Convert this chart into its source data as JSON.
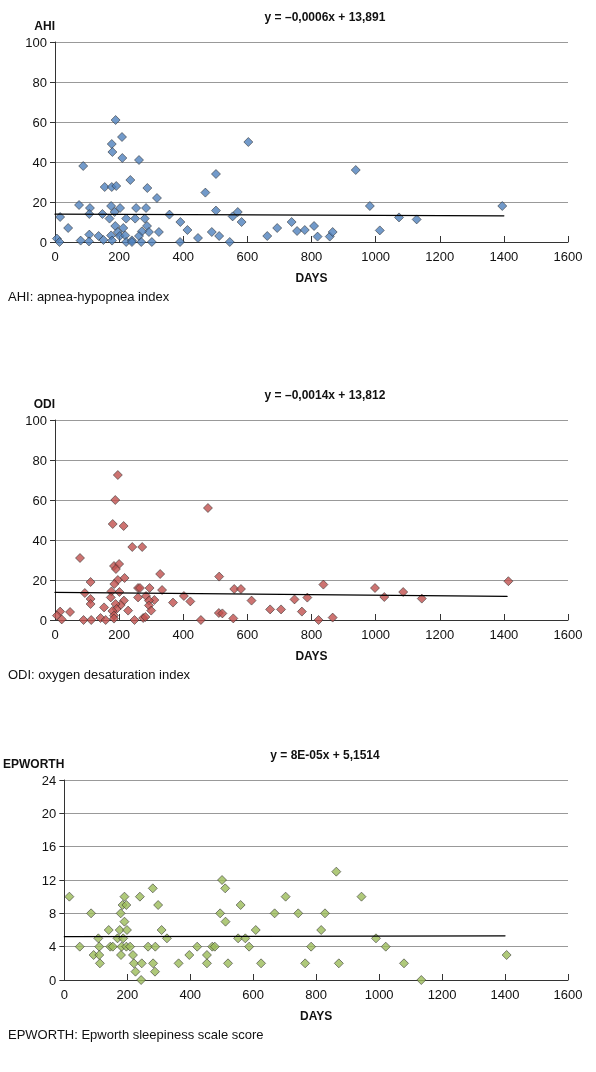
{
  "chart_data": [
    {
      "type": "scatter",
      "title": "y = –0,0006x + 13,891",
      "ylabel": "AHI",
      "xlabel": "DAYS",
      "annotations": [
        "AHI: apnea-hypopnea index"
      ],
      "xlim": [
        0,
        1600
      ],
      "xticks": [
        0,
        200,
        400,
        600,
        800,
        1000,
        1200,
        1400,
        1600
      ],
      "ylim": [
        0,
        100
      ],
      "yticks": [
        0,
        20,
        40,
        60,
        80,
        100
      ],
      "grid": "y",
      "marker": "diamond",
      "series": [
        {
          "color": "#4f81bd",
          "x": [
            189,
            209,
            177,
            179,
            210,
            262,
            88,
            603,
            502,
            235,
            155,
            177,
            191,
            288,
            318,
            469,
            75,
            109,
            107,
            148,
            175,
            186,
            203,
            170,
            222,
            253,
            250,
            284,
            280,
            357,
            16,
            41,
            188,
            196,
            213,
            287,
            293,
            271,
            262,
            324,
            391,
            413,
            446,
            489,
            512,
            502,
            554,
            570,
            582,
            545,
            662,
            693,
            738,
            755,
            779,
            808,
            819,
            6,
            14,
            80,
            107,
            106,
            136,
            151,
            175,
            178,
            202,
            219,
            222,
            240,
            240,
            269,
            302,
            390,
            938,
            982,
            1395,
            1073,
            1128,
            1013,
            857,
            866
          ],
          "values": [
            61,
            52.5,
            49,
            45,
            42,
            41,
            38,
            50,
            34,
            31,
            27.5,
            27.5,
            28,
            27,
            22,
            24.7,
            18.5,
            17,
            14,
            14,
            18,
            15,
            17,
            11.7,
            11.7,
            17,
            11.7,
            17,
            11.7,
            13.7,
            12.5,
            7,
            8,
            5,
            7,
            8,
            5,
            5.3,
            3,
            5,
            10,
            6,
            2,
            5,
            3,
            15.7,
            12.8,
            15,
            10,
            0,
            3,
            7,
            10,
            5.5,
            6,
            8,
            2.7,
            1.7,
            0,
            0.7,
            3.7,
            0.3,
            3,
            1,
            3.3,
            0.7,
            3,
            3.3,
            0,
            0.8,
            0,
            0,
            0,
            0,
            36,
            18,
            18,
            12.3,
            11.3,
            5.8,
            2.7,
            5
          ]
        },
        {
          "type": "line",
          "color": "#000000",
          "marker": "none",
          "x": [
            0,
            1400
          ],
          "values": [
            13.9,
            13.1
          ]
        }
      ]
    },
    {
      "type": "scatter",
      "title": "y = –0,0014x + 13,812",
      "ylabel": "ODI",
      "xlabel": "DAYS",
      "annotations": [
        "ODI: oxygen desaturation index"
      ],
      "xlim": [
        0,
        1600
      ],
      "xticks": [
        0,
        200,
        400,
        600,
        800,
        1000,
        1200,
        1400,
        1600
      ],
      "ylim": [
        0,
        100
      ],
      "yticks": [
        0,
        20,
        40,
        60,
        80,
        100
      ],
      "grid": "y",
      "marker": "diamond",
      "series": [
        {
          "color": "#c0504d",
          "x": [
            196,
            188,
            180,
            214,
            477,
            241,
            272,
            78,
            184,
            200,
            190,
            217,
            196,
            111,
            185,
            328,
            512,
            93,
            176,
            201,
            259,
            265,
            295,
            334,
            174,
            259,
            284,
            310,
            402,
            422,
            368,
            559,
            580,
            613,
            111,
            111,
            215,
            293,
            205,
            189,
            153,
            192,
            228,
            293,
            300,
            179,
            47,
            16,
            6,
            21,
            89,
            113,
            142,
            158,
            184,
            184,
            248,
            275,
            282,
            455,
            511,
            522,
            556,
            671,
            705,
            747,
            770,
            787,
            837,
            822,
            866,
            998,
            1027,
            1086,
            1144,
            1414
          ],
          "values": [
            72.5,
            60,
            48,
            47,
            56,
            36.5,
            36.5,
            31,
            27,
            28,
            25.5,
            21,
            20,
            19,
            18,
            23,
            21.7,
            13.5,
            14.3,
            14,
            16,
            16,
            16,
            15,
            11.3,
            11.3,
            12,
            10,
            12,
            9.3,
            8.7,
            15.5,
            15.5,
            9.7,
            10.5,
            8,
            9.7,
            9.7,
            7.5,
            8,
            6.3,
            5.5,
            4.7,
            7.3,
            4.7,
            4.5,
            4,
            4.2,
            2.2,
            0.3,
            0,
            0,
            1,
            0,
            2.2,
            0.7,
            0,
            1,
            1.5,
            0,
            3.5,
            3.3,
            0.8,
            5.3,
            5.3,
            10.3,
            4.2,
            11.2,
            17.7,
            0,
            1.2,
            16,
            11.5,
            14,
            10.7,
            19.4
          ]
        },
        {
          "type": "line",
          "color": "#000000",
          "marker": "none",
          "x": [
            0,
            1410
          ],
          "values": [
            13.8,
            11.8
          ]
        }
      ]
    },
    {
      "type": "scatter",
      "title": "y = 8E-05x + 5,1514",
      "ylabel": "EPWORTH",
      "xlabel": "DAYS",
      "annotations": [
        "EPWORTH: Epworth sleepiness scale score"
      ],
      "xlim": [
        0,
        1600
      ],
      "xticks": [
        0,
        200,
        400,
        600,
        800,
        1000,
        1200,
        1400,
        1600
      ],
      "ylim": [
        0,
        24
      ],
      "yticks": [
        0,
        4,
        8,
        12,
        16,
        20,
        24
      ],
      "grid": "y",
      "marker": "diamond",
      "series": [
        {
          "color": "#9bbb59",
          "x": [
            16,
            49,
            85,
            93,
            108,
            111,
            111,
            113,
            141,
            146,
            154,
            169,
            176,
            180,
            182,
            179,
            185,
            191,
            197,
            191,
            199,
            187,
            197,
            209,
            218,
            221,
            226,
            244,
            246,
            240,
            266,
            282,
            288,
            289,
            281,
            298,
            309,
            326,
            363,
            397,
            422,
            453,
            453,
            470,
            478,
            495,
            501,
            511,
            512,
            520,
            552,
            575,
            560,
            587,
            608,
            625,
            668,
            703,
            743,
            765,
            784,
            816,
            864,
            944,
            828,
            872,
            990,
            1021,
            1079,
            1134,
            1405
          ],
          "values": [
            10,
            4,
            8,
            3,
            5,
            4,
            3,
            2,
            6,
            4,
            4,
            5,
            6,
            3,
            4,
            8,
            9,
            10,
            9,
            7,
            6,
            5,
            4,
            4,
            3,
            2,
            1,
            0,
            2,
            10,
            4,
            2,
            1,
            4,
            11,
            9,
            6,
            5,
            2,
            3,
            4,
            3,
            2,
            4,
            4,
            8,
            12,
            11,
            7,
            2,
            5,
            5,
            9,
            4,
            6,
            2,
            8,
            10,
            8,
            2,
            4,
            6,
            13,
            10,
            8,
            2,
            5,
            4,
            2,
            0,
            3
          ]
        },
        {
          "type": "line",
          "color": "#000000",
          "marker": "none",
          "x": [
            0,
            1400
          ],
          "values": [
            5.2,
            5.3
          ]
        }
      ]
    }
  ]
}
